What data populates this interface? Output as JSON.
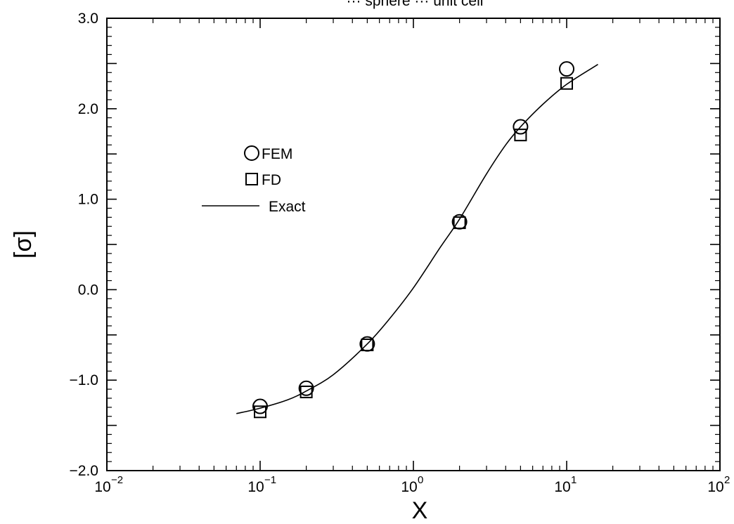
{
  "chart_data": {
    "type": "scatter",
    "title": "··· sphere ··· unit cell",
    "xlabel": "X",
    "ylabel": "[σ]",
    "xscale": "log",
    "xlim": [
      0.01,
      100
    ],
    "ylim": [
      -2.0,
      3.0
    ],
    "x_ticks": [
      {
        "base": "10",
        "exp": "-2"
      },
      {
        "base": "10",
        "exp": "-1"
      },
      {
        "base": "10",
        "exp": "0"
      },
      {
        "base": "10",
        "exp": "1"
      },
      {
        "base": "10",
        "exp": "2"
      }
    ],
    "y_ticks": [
      "-2.0",
      "-1.0",
      "0.0",
      "1.0",
      "2.0",
      "3.0"
    ],
    "grid": false,
    "legend_position": "upper-left",
    "series": [
      {
        "name": "FEM",
        "marker": "circle",
        "x": [
          0.1,
          0.2,
          0.5,
          2.0,
          5.0,
          10.0
        ],
        "y": [
          -1.29,
          -1.09,
          -0.6,
          0.75,
          1.8,
          2.44
        ]
      },
      {
        "name": "FD",
        "marker": "square",
        "x": [
          0.1,
          0.2,
          0.5,
          2.0,
          5.0,
          10.0
        ],
        "y": [
          -1.35,
          -1.13,
          -0.61,
          0.74,
          1.71,
          2.28
        ]
      },
      {
        "name": "Exact",
        "marker": "line",
        "x": [
          0.07,
          0.1,
          0.15,
          0.2,
          0.3,
          0.5,
          0.7,
          1.0,
          1.5,
          2.0,
          3.0,
          4.0,
          5.0,
          7.0,
          10.0,
          16.0
        ],
        "y": [
          -1.37,
          -1.31,
          -1.22,
          -1.12,
          -0.94,
          -0.6,
          -0.32,
          0.02,
          0.47,
          0.78,
          1.28,
          1.6,
          1.8,
          2.05,
          2.27,
          2.49
        ]
      }
    ]
  }
}
